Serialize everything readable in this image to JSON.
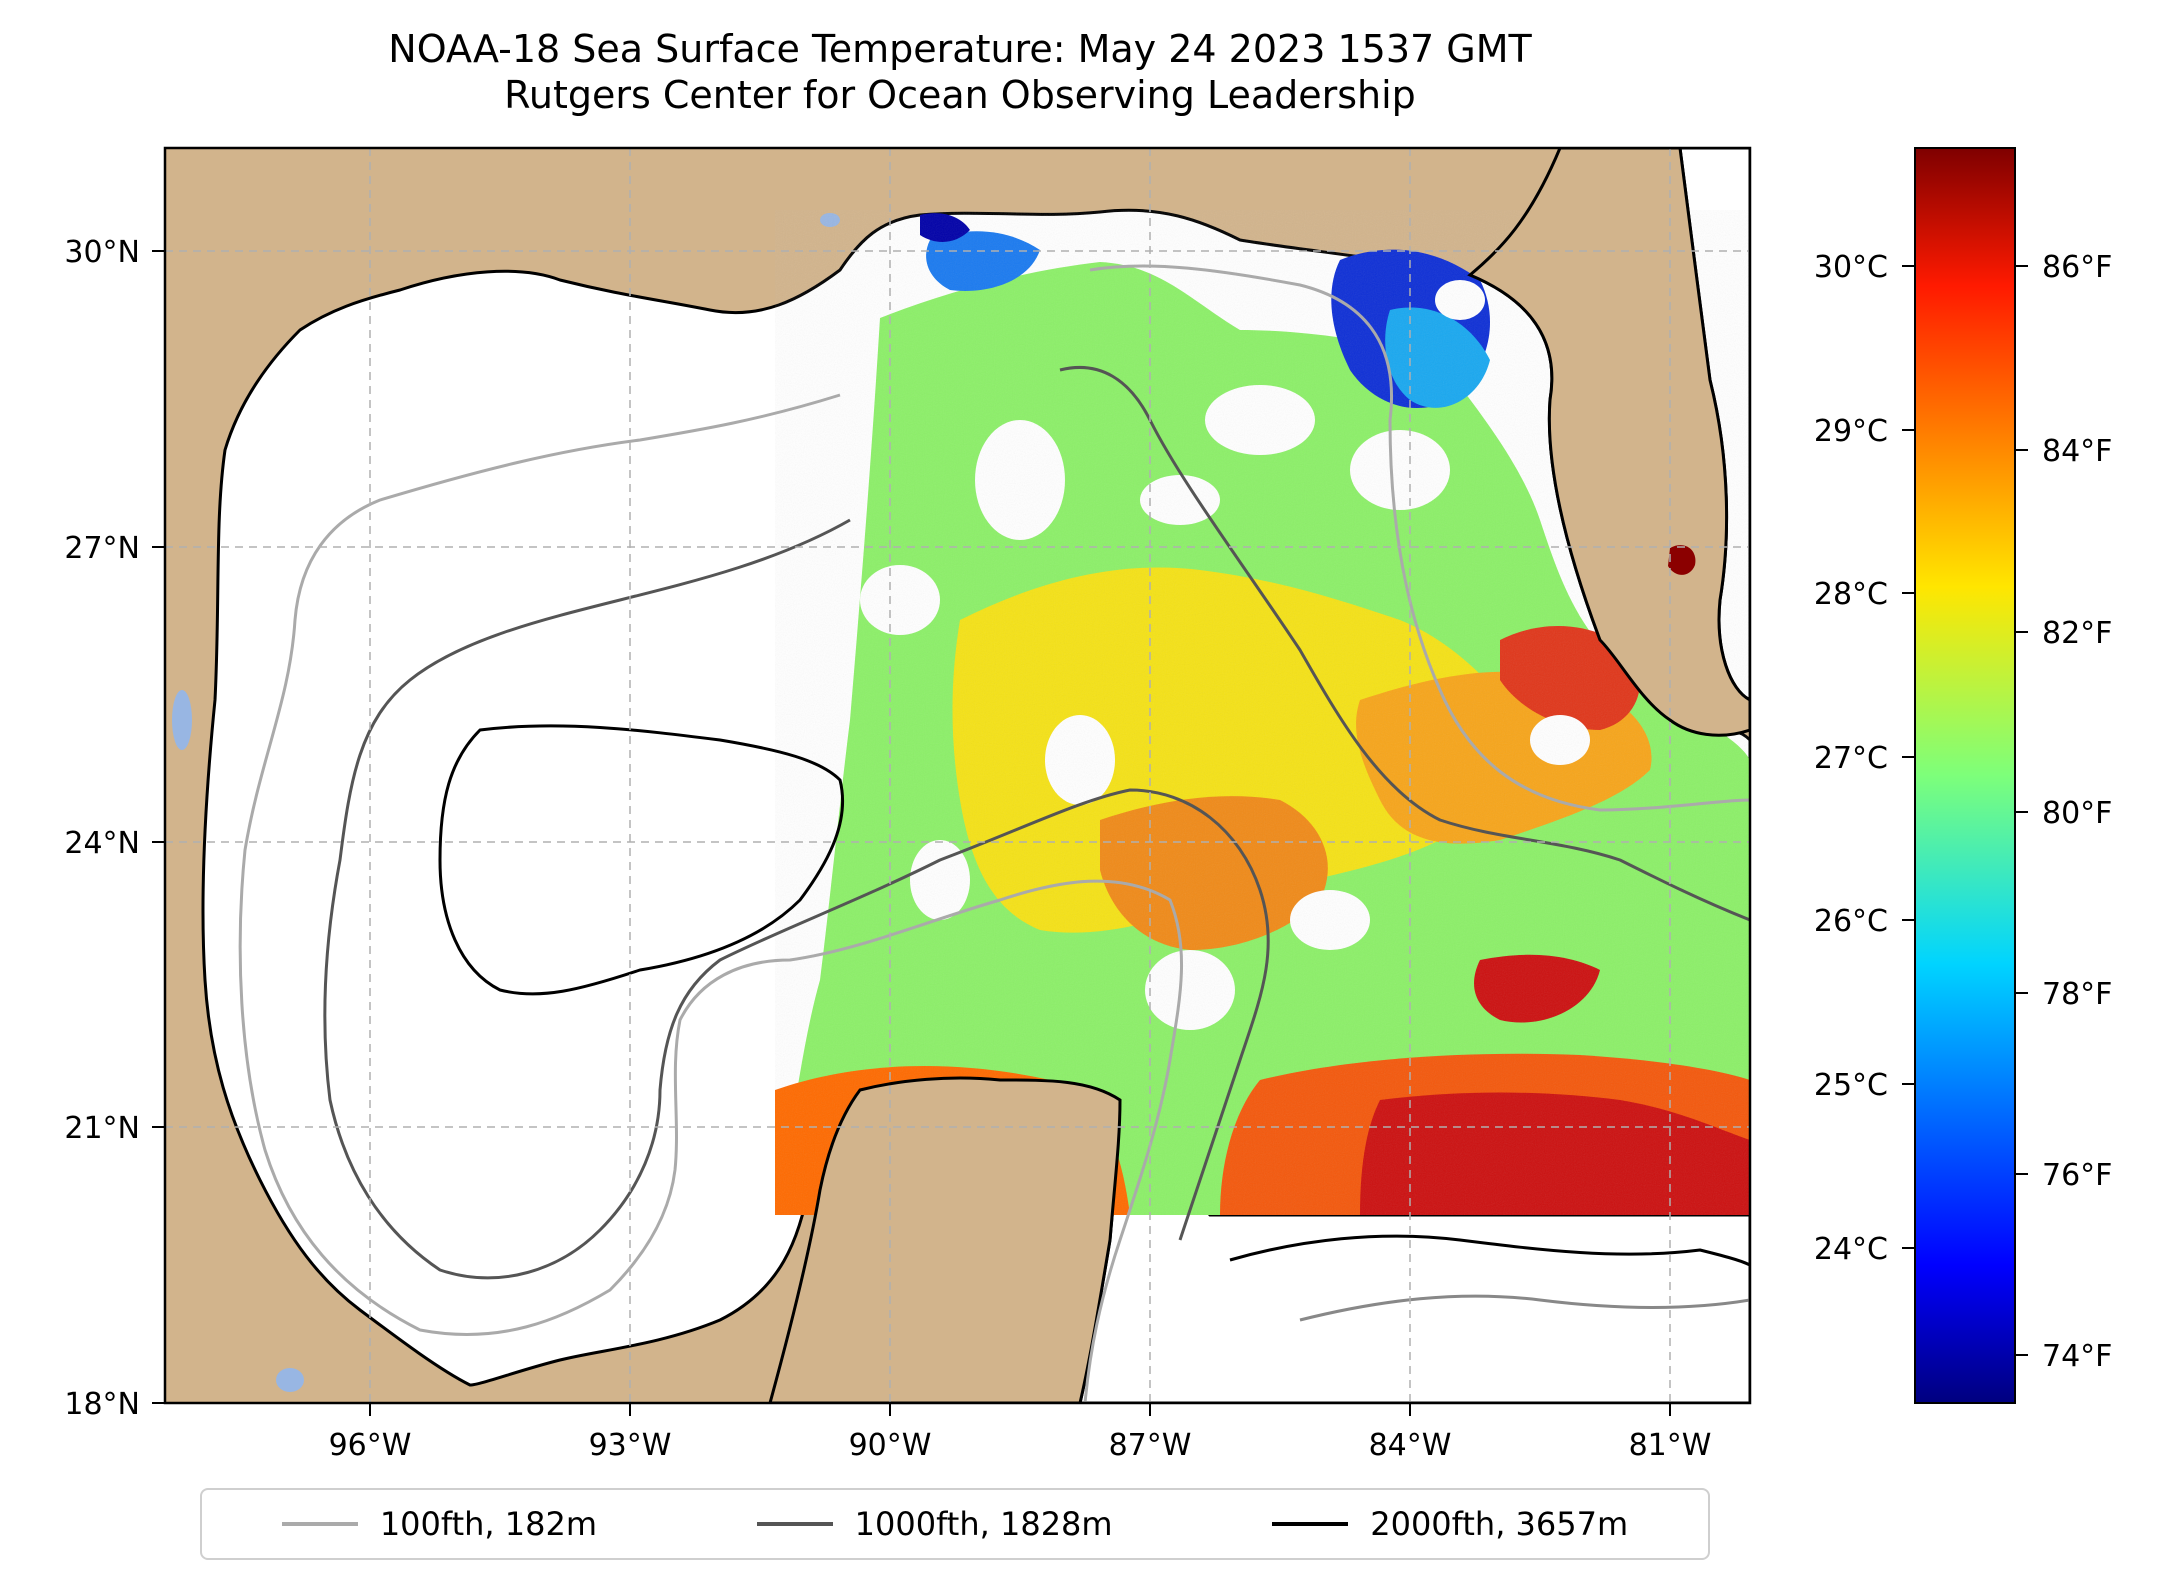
{
  "title": {
    "line1": "NOAA-18 Sea Surface Temperature: May 24 2023 1537 GMT",
    "line2": "Rutgers Center for Ocean Observing Leadership"
  },
  "map": {
    "lat_range": [
      18,
      31.4
    ],
    "lon_range": [
      -98.0,
      -80.0
    ],
    "lat_ticks": [
      "30°N",
      "27°N",
      "24°N",
      "21°N",
      "18°N"
    ],
    "lon_ticks": [
      "96°W",
      "93°W",
      "90°W",
      "87°W",
      "84°W",
      "81°W"
    ],
    "land_color": "#d2b48c",
    "ocean_color": "#ffffff",
    "lake_color": "#98b6e3"
  },
  "colorbar": {
    "celsius_ticks": [
      "30°C",
      "29°C",
      "28°C",
      "27°C",
      "26°C",
      "25°C",
      "24°C"
    ],
    "fahrenheit_ticks": [
      "86°F",
      "84°F",
      "82°F",
      "80°F",
      "78°F",
      "76°F",
      "74°F"
    ],
    "colormap": "jet"
  },
  "legend": {
    "items": [
      {
        "label": "100fth, 182m",
        "color": "#aaaaaa"
      },
      {
        "label": "1000fth, 1828m",
        "color": "#555555"
      },
      {
        "label": "2000fth, 3657m",
        "color": "#000000"
      }
    ]
  }
}
